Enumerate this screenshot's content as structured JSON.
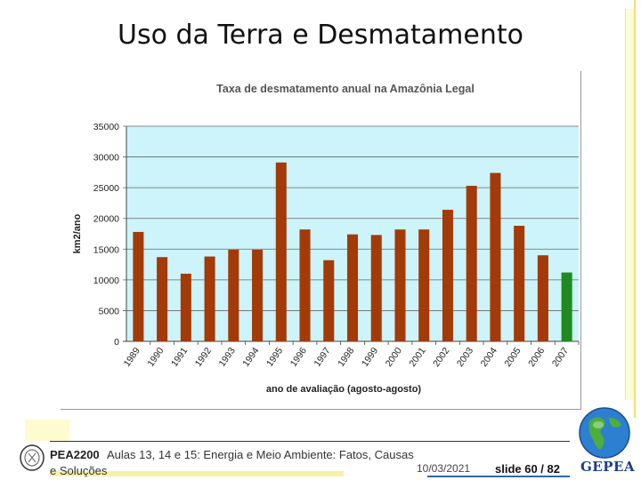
{
  "slide": {
    "title": "Uso da Terra e Desmatamento",
    "footer": {
      "course_code": "PEA2200",
      "course_text": "Aulas 13, 14 e 15: Energia e Meio Ambiente: Fatos, Causas",
      "course_text_2": "e Soluções",
      "date": "10/03/2021",
      "slide_number": "slide 60 / 82",
      "logo_text": "GEPEA",
      "seal_text": "EPUSP"
    }
  },
  "colors": {
    "plot_bg": "#ccf4fa",
    "bar_default": "#a33a08",
    "bar_highlight": "#1f8a1f",
    "title_color": "#555555",
    "grid": "#666666"
  },
  "chart_data": {
    "type": "bar",
    "title": "Taxa de desmatamento anual na Amazônia Legal",
    "xlabel": "ano de avaliação (agosto-agosto)",
    "ylabel": "km2/ano",
    "ylim": [
      0,
      35000
    ],
    "yticks": [
      0,
      5000,
      10000,
      15000,
      20000,
      25000,
      30000,
      35000
    ],
    "grid": true,
    "categories": [
      "1989",
      "1990",
      "1991",
      "1992",
      "1993",
      "1994",
      "1995",
      "1996",
      "1997",
      "1998",
      "1999",
      "2000",
      "2001",
      "2002",
      "2003",
      "2004",
      "2005",
      "2006",
      "2007"
    ],
    "values": [
      17800,
      13700,
      11000,
      13800,
      14900,
      14900,
      29100,
      18200,
      13200,
      17400,
      17300,
      18200,
      18200,
      21400,
      25300,
      27400,
      18800,
      14000,
      11200
    ],
    "highlight_index": 18
  }
}
